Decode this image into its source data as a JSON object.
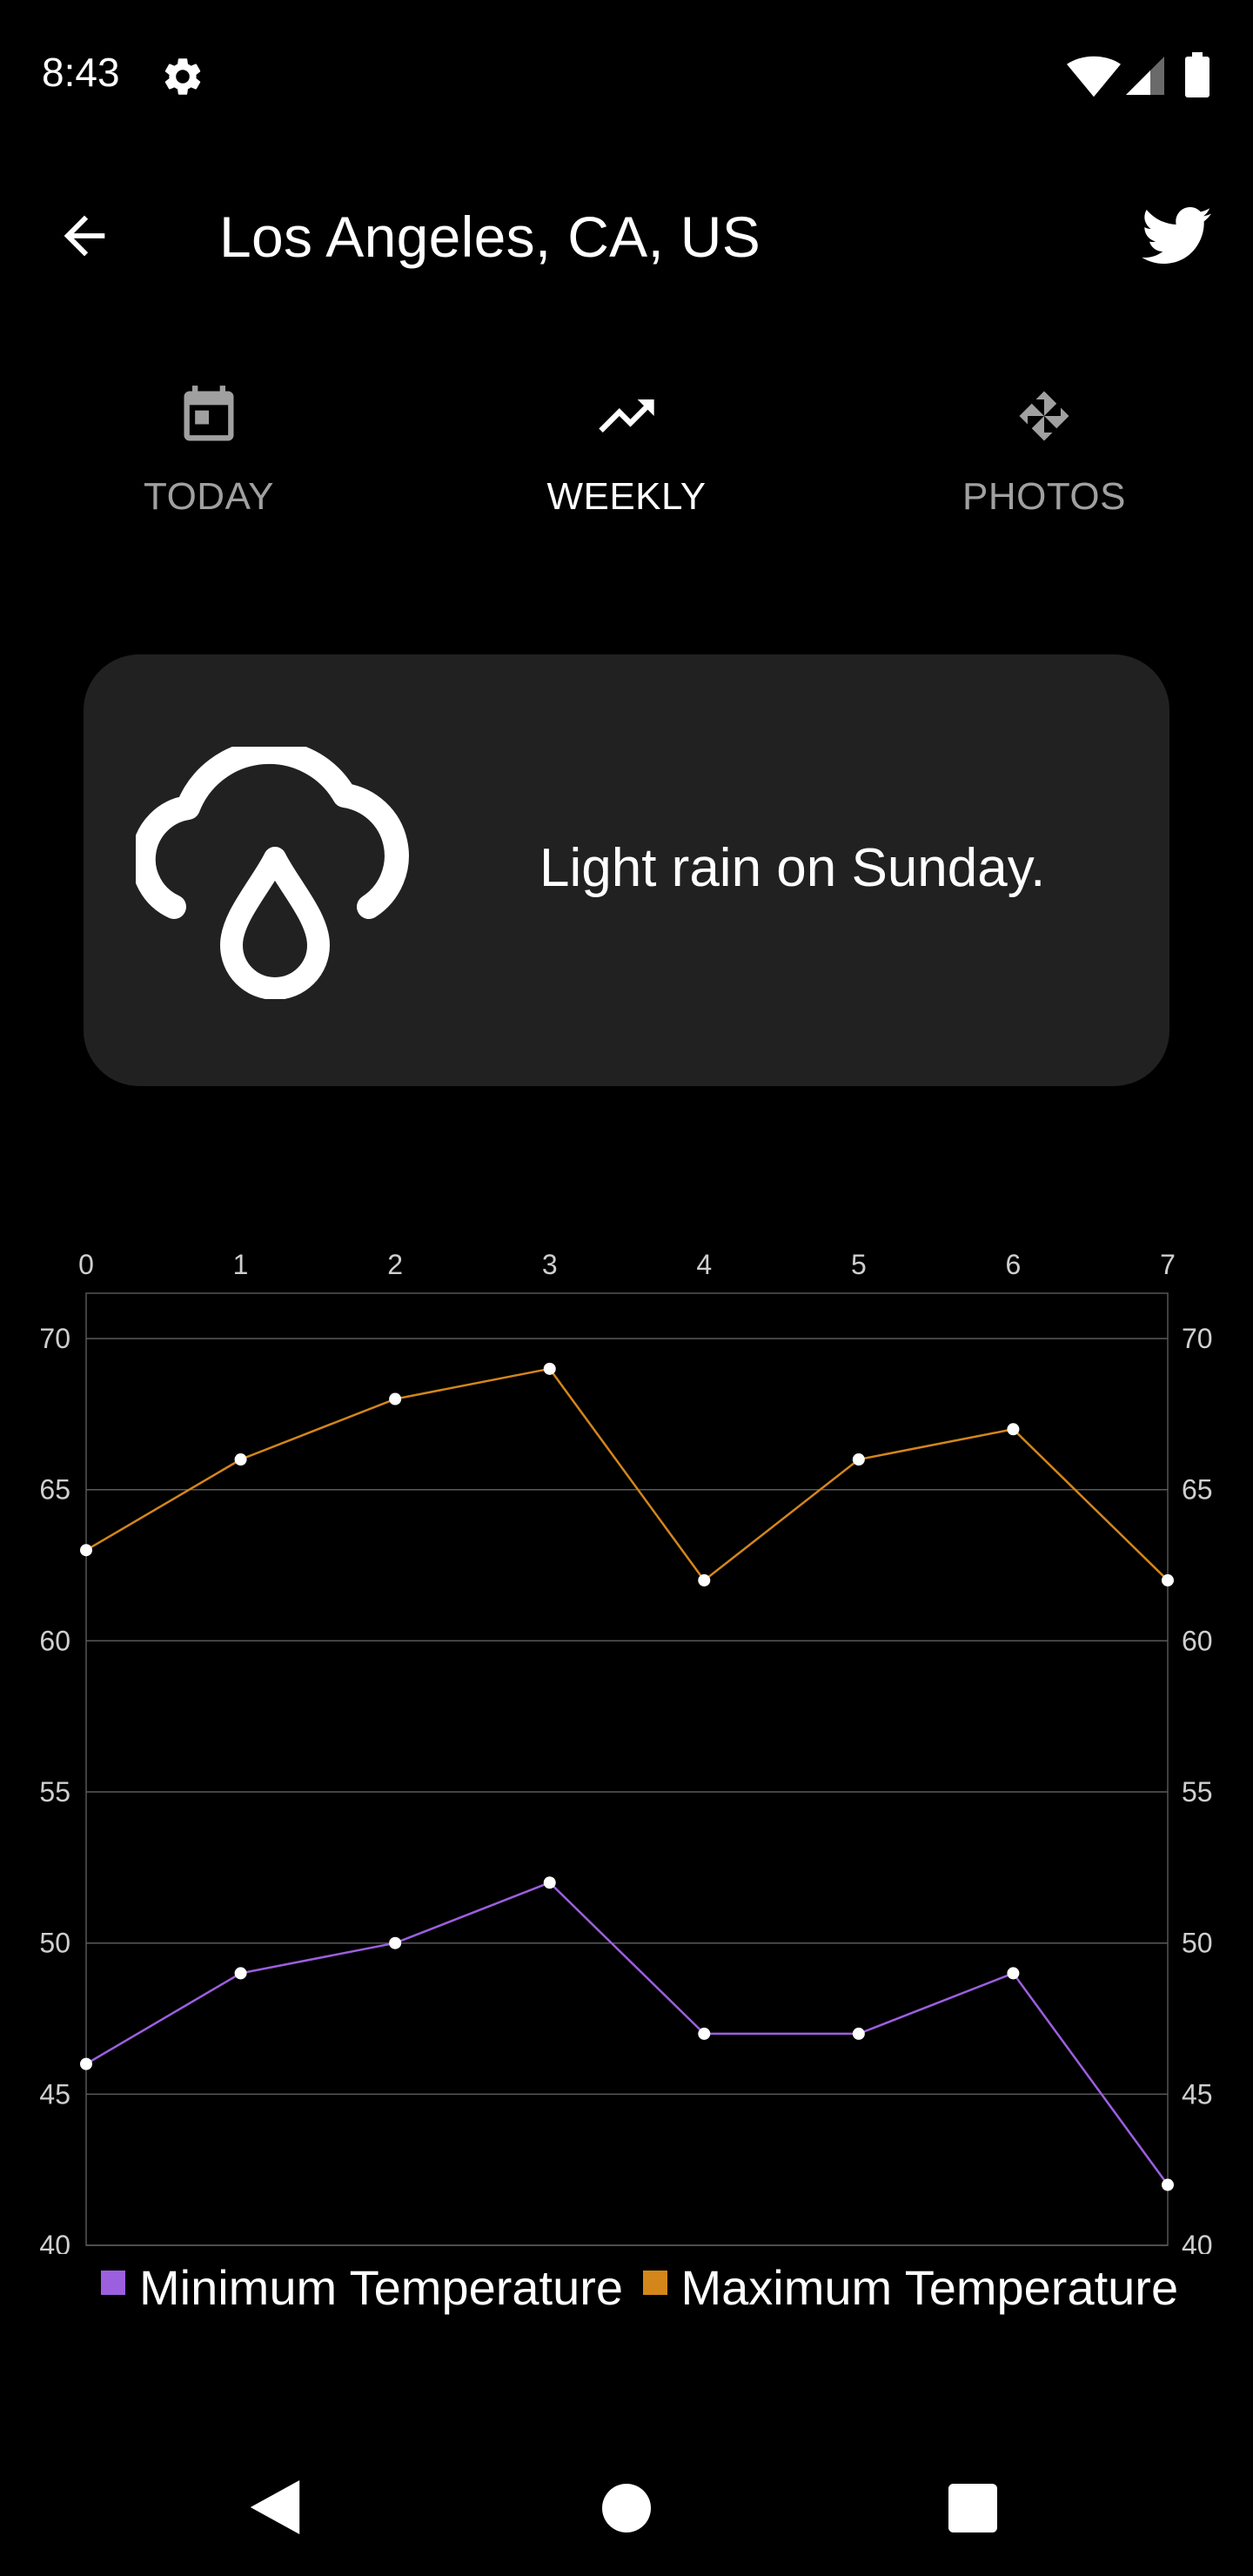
{
  "status_bar": {
    "time": "8:43",
    "icons": [
      "gear-icon",
      "wifi-icon",
      "cell-signal-icon",
      "battery-icon"
    ]
  },
  "app_bar": {
    "title": "Los Angeles, CA, US",
    "back_icon": "arrow-back-icon",
    "share_icon": "twitter-icon"
  },
  "tabs": [
    {
      "label": "TODAY",
      "icon": "calendar-icon",
      "selected": false
    },
    {
      "label": "WEEKLY",
      "icon": "trending-up-icon",
      "selected": true
    },
    {
      "label": "PHOTOS",
      "icon": "pinwheel-icon",
      "selected": false
    }
  ],
  "summary": {
    "icon": "cloud-rain-icon",
    "text": "Light rain on Sunday."
  },
  "colors": {
    "background": "#000000",
    "card": "#212121",
    "tab_inactive": "#a0a0a0",
    "tab_active": "#ffffff",
    "min_series": "#9c5fe0",
    "max_series": "#d4861a"
  },
  "chart_data": {
    "type": "line",
    "x": [
      0,
      1,
      2,
      3,
      4,
      5,
      6,
      7
    ],
    "x_ticks": [
      "0",
      "1",
      "2",
      "3",
      "4",
      "5",
      "6",
      "7"
    ],
    "y_ticks": [
      "40",
      "45",
      "50",
      "55",
      "60",
      "65",
      "70"
    ],
    "ylim": [
      40,
      71.5
    ],
    "xlim": [
      0,
      7
    ],
    "x_axis_position": "top",
    "y_axis_position": "both",
    "grid": true,
    "legend_position": "bottom",
    "series": [
      {
        "name": "Minimum Temperature",
        "color": "#9c5fe0",
        "values": [
          46,
          49,
          50,
          52,
          47,
          47,
          49,
          42
        ]
      },
      {
        "name": "Maximum Temperature",
        "color": "#d4861a",
        "values": [
          63,
          66,
          68,
          69,
          62,
          66,
          67,
          62
        ]
      }
    ]
  },
  "nav_bar": {
    "icons": [
      "nav-back-icon",
      "nav-home-icon",
      "nav-recents-icon"
    ]
  }
}
